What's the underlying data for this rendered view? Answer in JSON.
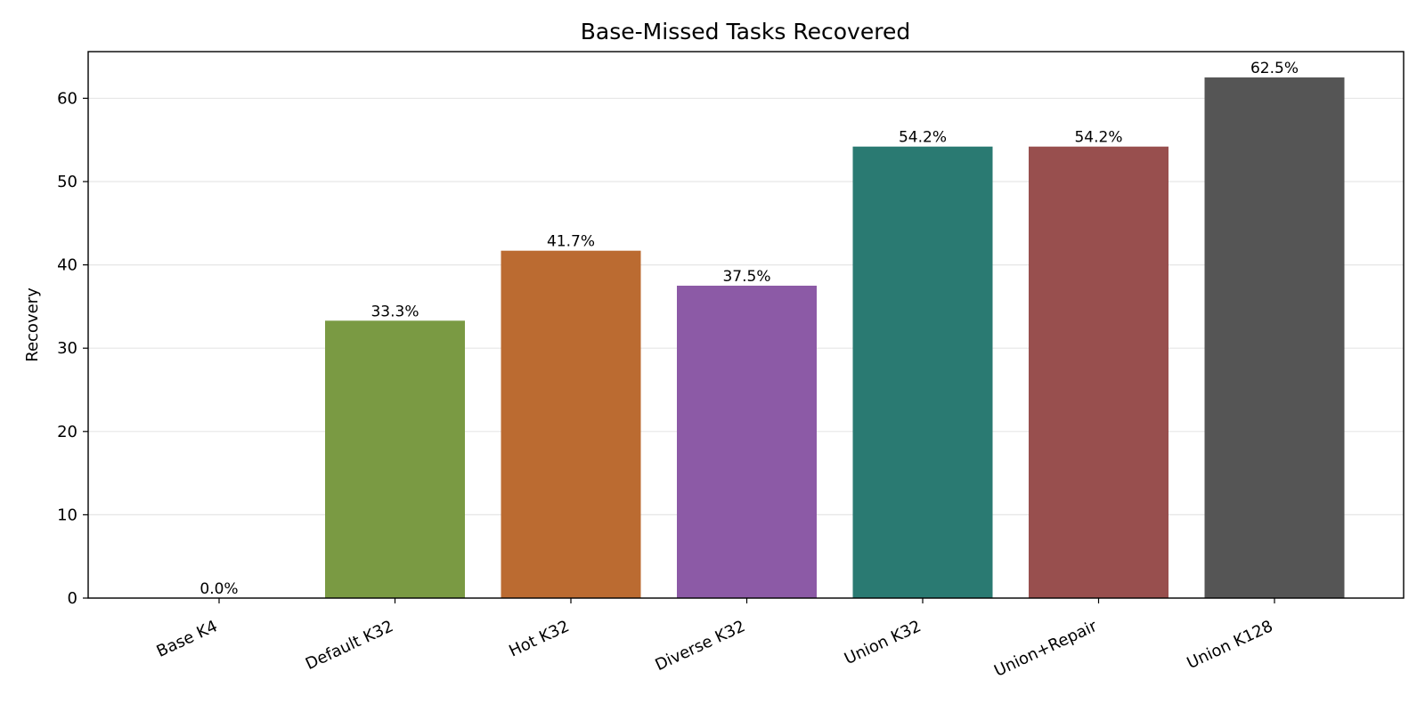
{
  "chart_data": {
    "type": "bar",
    "title": "Base-Missed Tasks Recovered",
    "xlabel": "",
    "ylabel": "Recovery",
    "categories": [
      "Base K4",
      "Default K32",
      "Hot K32",
      "Diverse K32",
      "Union K32",
      "Union+Repair",
      "Union K128"
    ],
    "values": [
      0.0,
      33.3,
      41.7,
      37.5,
      54.2,
      54.2,
      62.5
    ],
    "value_labels": [
      "0.0%",
      "33.3%",
      "41.7%",
      "37.5%",
      "54.2%",
      "54.2%",
      "62.5%"
    ],
    "colors": [
      "#7a7a7a",
      "#7a9a43",
      "#bb6b31",
      "#8c5aa6",
      "#2a7a72",
      "#984f4e",
      "#555555"
    ],
    "ylim": [
      0,
      65.6
    ],
    "yticks": [
      0,
      10,
      20,
      30,
      40,
      50,
      60
    ],
    "grid": "y",
    "legend": "none"
  }
}
